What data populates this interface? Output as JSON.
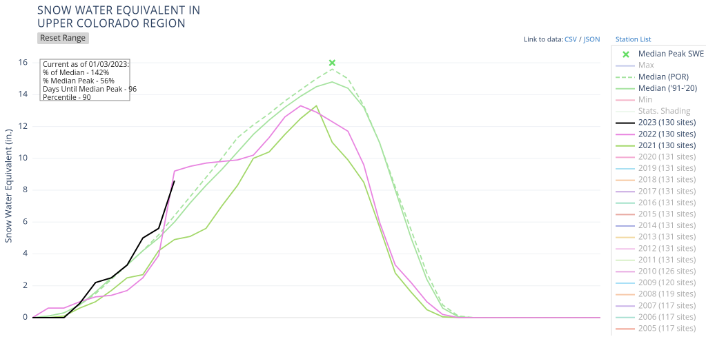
{
  "header": {
    "title_lines": [
      "SNOW WATER EQUIVALENT IN",
      "UPPER COLORADO REGION"
    ],
    "button": "Reset Range",
    "link_label": "Link to data:",
    "csv": "CSV",
    "separator": "/",
    "json": "JSON",
    "station_list": "Station List"
  },
  "chart_data": {
    "type": "line",
    "y_label": "Snow Water Equivalent (in.)",
    "annotation": [
      "Current as of 01/03/2023:",
      "% of Median - 142%",
      "% Median Peak - 56%",
      "Days Until Median Peak - 96",
      "Percentile - 90"
    ],
    "ylim": [
      -0.2,
      17
    ],
    "yticks": [
      0,
      2,
      4,
      6,
      8,
      10,
      12,
      14,
      16
    ],
    "grid": true,
    "series": [
      {
        "name": "Median Peak SWE",
        "color": "#66dd66",
        "visible": true,
        "marker": "x",
        "values": [
          null,
          null,
          null,
          null,
          null,
          null,
          null,
          null,
          null,
          null,
          null,
          null,
          null,
          null,
          null,
          null,
          null,
          null,
          null,
          16.0,
          null,
          null,
          null,
          null,
          null,
          null,
          null,
          null,
          null,
          null,
          null,
          null,
          null,
          null,
          null,
          null,
          null
        ]
      },
      {
        "name": "Max",
        "color": "#c2c9ea",
        "visible": false
      },
      {
        "name": "Median (POR)",
        "color": "#a6e3a0",
        "visible": true,
        "dash": true,
        "values": [
          0,
          0.1,
          0.3,
          0.8,
          1.5,
          2.4,
          3.3,
          4.2,
          5.2,
          6.4,
          7.6,
          8.8,
          10.0,
          11.3,
          12.1,
          12.8,
          13.6,
          14.3,
          15.0,
          15.6,
          15.0,
          13.3,
          11.0,
          8.2,
          5.5,
          2.8,
          0.8,
          0.1,
          0,
          0,
          0,
          0,
          0,
          0,
          0,
          0,
          0
        ]
      },
      {
        "name": "Median ('91-'20)",
        "color": "#a6e3a0",
        "visible": true,
        "values": [
          0,
          0.1,
          0.3,
          0.8,
          1.6,
          2.5,
          3.3,
          4.2,
          5.0,
          6.0,
          7.2,
          8.3,
          9.3,
          10.4,
          11.5,
          12.4,
          13.2,
          13.9,
          14.5,
          14.8,
          14.4,
          13.2,
          11.0,
          8.0,
          5.0,
          2.4,
          0.6,
          0.05,
          0,
          0,
          0,
          0,
          0,
          0,
          0,
          0,
          0
        ]
      },
      {
        "name": "Min",
        "color": "#f5b3c8",
        "visible": false
      },
      {
        "name": "Stats. Shading",
        "color": "#eef8ee",
        "visible": false
      },
      {
        "name": "2023 (130 sites)",
        "color": "#000000",
        "visible": true,
        "values": [
          0,
          0,
          0,
          0.9,
          2.2,
          2.5,
          3.3,
          5.0,
          5.6,
          8.6,
          null,
          null,
          null,
          null,
          null,
          null,
          null,
          null,
          null,
          null,
          null,
          null,
          null,
          null,
          null,
          null,
          null,
          null,
          null,
          null,
          null,
          null,
          null,
          null,
          null,
          null,
          null
        ]
      },
      {
        "name": "2022 (130 sites)",
        "color": "#e884e0",
        "visible": true,
        "values": [
          0,
          0.6,
          0.6,
          1.0,
          1.3,
          1.4,
          1.7,
          2.5,
          3.9,
          9.2,
          9.5,
          9.7,
          9.8,
          9.9,
          10.2,
          11.3,
          12.6,
          13.3,
          12.9,
          12.3,
          11.7,
          9.6,
          6.0,
          3.3,
          2.2,
          1.0,
          0.2,
          0,
          0,
          0,
          0,
          0,
          0,
          0,
          0,
          0,
          0
        ]
      },
      {
        "name": "2021 (130 sites)",
        "color": "#a3d86a",
        "visible": true,
        "values": [
          0,
          0,
          0.1,
          0.6,
          1.0,
          1.7,
          2.5,
          2.7,
          4.2,
          4.9,
          5.1,
          5.6,
          7.0,
          8.3,
          10.0,
          10.4,
          11.5,
          12.5,
          13.3,
          11.0,
          9.9,
          8.5,
          5.7,
          2.8,
          1.6,
          0.5,
          0.05,
          0,
          0,
          0,
          0,
          0,
          0,
          0,
          0,
          0,
          0
        ]
      },
      {
        "name": "2020 (131 sites)",
        "color": "#f3a9d2",
        "visible": false
      },
      {
        "name": "2019 (131 sites)",
        "color": "#a9e0f2",
        "visible": false
      },
      {
        "name": "2018 (131 sites)",
        "color": "#f7c9a3",
        "visible": false
      },
      {
        "name": "2017 (131 sites)",
        "color": "#c9aae2",
        "visible": false
      },
      {
        "name": "2016 (131 sites)",
        "color": "#a3e2c9",
        "visible": false
      },
      {
        "name": "2015 (131 sites)",
        "color": "#e8aaa2",
        "visible": false
      },
      {
        "name": "2014 (131 sites)",
        "color": "#a8aee2",
        "visible": false
      },
      {
        "name": "2013 (131 sites)",
        "color": "#f2d9a2",
        "visible": false
      },
      {
        "name": "2012 (131 sites)",
        "color": "#f2c2ea",
        "visible": false
      },
      {
        "name": "2011 (131 sites)",
        "color": "#d9f0c9",
        "visible": false
      },
      {
        "name": "2010 (126 sites)",
        "color": "#e8aae2",
        "visible": false
      },
      {
        "name": "2009 (120 sites)",
        "color": "#a9e0f7",
        "visible": false
      },
      {
        "name": "2008 (119 sites)",
        "color": "#f7c9aa",
        "visible": false
      },
      {
        "name": "2007 (117 sites)",
        "color": "#c9b2e8",
        "visible": false
      },
      {
        "name": "2006 (117 sites)",
        "color": "#a9e0d2",
        "visible": false
      },
      {
        "name": "2005 (117 sites)",
        "color": "#f0a292",
        "visible": false
      }
    ]
  }
}
